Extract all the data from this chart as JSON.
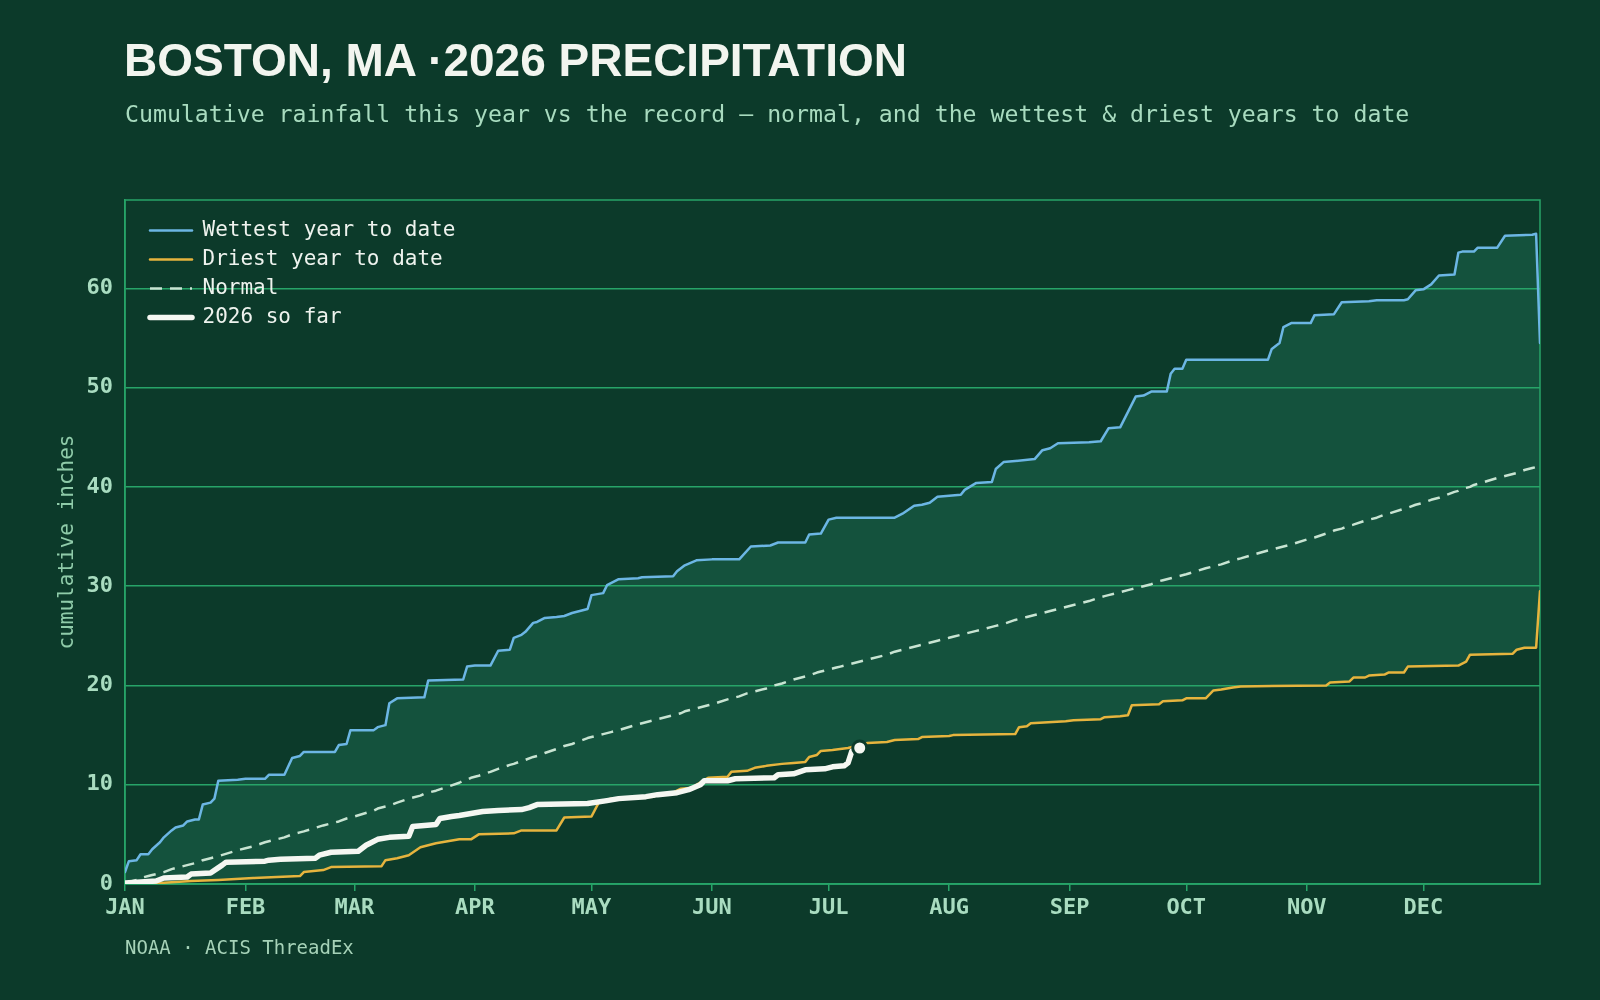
{
  "chart_data": {
    "type": "line",
    "title": "BOSTON, MA ·2026 PRECIPITATION",
    "subtitle": "Cumulative rainfall this year vs the record — normal, and the wettest & driest years to date",
    "ylabel": "cumulative inches",
    "xlim": [
      "--01-01",
      "--12-31"
    ],
    "xticks": [
      {
        "value": "--01-01",
        "label": "JAN"
      },
      {
        "value": "--02-01",
        "label": "FEB"
      },
      {
        "value": "--03-01",
        "label": "MAR"
      },
      {
        "value": "--04-01",
        "label": "APR"
      },
      {
        "value": "--05-01",
        "label": "MAY"
      },
      {
        "value": "--06-01",
        "label": "JUN"
      },
      {
        "value": "--07-01",
        "label": "JUL"
      },
      {
        "value": "--08-01",
        "label": "AUG"
      },
      {
        "value": "--09-01",
        "label": "SEP"
      },
      {
        "value": "--10-01",
        "label": "OCT"
      },
      {
        "value": "--11-01",
        "label": "NOV"
      },
      {
        "value": "--12-01",
        "label": "DEC"
      }
    ],
    "ylim": [
      0,
      68.9
    ],
    "yticks": [
      0,
      10,
      20,
      30,
      40,
      50,
      60
    ],
    "grid": "y",
    "legend": "top left",
    "annotations": [
      "NOAA · ACIS ThreadEx"
    ],
    "series": [
      {
        "name": "Wettest year to date",
        "color": "#6cb6e4",
        "x": [
          "--01-01",
          "--01-02",
          "--01-04",
          "--01-05",
          "--01-07",
          "--01-08",
          "--01-10",
          "--01-11",
          "--01-13",
          "--01-14",
          "--01-16",
          "--01-17",
          "--01-19",
          "--01-20",
          "--01-21",
          "--01-23",
          "--01-24",
          "--01-25",
          "--01-30",
          "--02-01",
          "--02-06",
          "--02-07",
          "--02-11",
          "--02-13",
          "--02-15",
          "--02-16",
          "--02-24",
          "--02-25",
          "--02-27",
          "--02-28",
          "--03-06",
          "--03-07",
          "--03-09",
          "--03-10",
          "--03-12",
          "--03-19",
          "--03-20",
          "--03-29",
          "--03-30",
          "--04-01",
          "--04-05",
          "--04-07",
          "--04-10",
          "--04-11",
          "--04-13",
          "--04-14",
          "--04-16",
          "--04-17",
          "--04-19",
          "--04-22",
          "--04-24",
          "--04-26",
          "--04-30",
          "--05-01",
          "--05-04",
          "--05-05",
          "--05-08",
          "--05-13",
          "--05-14",
          "--05-22",
          "--05-23",
          "--05-25",
          "--05-28",
          "--06-01",
          "--06-08",
          "--06-11",
          "--06-16",
          "--06-18",
          "--06-25",
          "--06-26",
          "--06-29",
          "--07-01",
          "--07-03",
          "--07-18",
          "--07-20",
          "--07-23",
          "--07-25",
          "--07-27",
          "--07-29",
          "--08-04",
          "--08-05",
          "--08-08",
          "--08-12",
          "--08-13",
          "--08-15",
          "--08-18",
          "--08-23",
          "--08-25",
          "--08-27",
          "--08-29",
          "--09-06",
          "--09-09",
          "--09-11",
          "--09-14",
          "--09-18",
          "--09-20",
          "--09-22",
          "--09-26",
          "--09-27",
          "--09-28",
          "--09-30",
          "--10-01",
          "--10-22",
          "--10-23",
          "--10-25",
          "--10-26",
          "--10-28",
          "--11-02",
          "--11-03",
          "--11-08",
          "--11-10",
          "--11-17",
          "--11-19",
          "--11-26",
          "--11-27",
          "--11-29",
          "--12-01",
          "--12-03",
          "--12-05",
          "--12-09",
          "--12-10",
          "--12-11",
          "--12-14",
          "--12-15",
          "--12-20",
          "--12-22",
          "--12-29",
          "--12-30",
          "--12-31"
        ],
        "values": [
          1.2,
          2.3,
          2.4,
          3.0,
          3.0,
          3.5,
          4.2,
          4.7,
          5.4,
          5.7,
          5.9,
          6.3,
          6.5,
          6.5,
          8.0,
          8.2,
          8.6,
          10.4,
          10.5,
          10.6,
          10.6,
          11.0,
          11.0,
          12.7,
          12.9,
          13.3,
          13.3,
          14.0,
          14.1,
          15.5,
          15.5,
          15.8,
          16.0,
          18.2,
          18.7,
          18.8,
          20.5,
          20.6,
          21.9,
          22.0,
          22.0,
          23.5,
          23.6,
          24.8,
          25.1,
          25.4,
          26.3,
          26.4,
          26.8,
          26.9,
          27.0,
          27.3,
          27.7,
          29.1,
          29.3,
          30.1,
          30.7,
          30.8,
          30.9,
          31.0,
          31.5,
          32.1,
          32.6,
          32.7,
          32.7,
          34.0,
          34.1,
          34.4,
          34.4,
          35.2,
          35.3,
          36.7,
          36.9,
          36.9,
          37.3,
          38.1,
          38.2,
          38.4,
          39.0,
          39.2,
          39.7,
          40.4,
          40.5,
          41.8,
          42.5,
          42.6,
          42.8,
          43.7,
          43.9,
          44.4,
          44.5,
          44.6,
          45.9,
          46.0,
          49.1,
          49.2,
          49.6,
          49.6,
          51.4,
          51.9,
          51.9,
          52.8,
          52.8,
          53.9,
          54.5,
          56.1,
          56.5,
          56.5,
          57.3,
          57.4,
          58.6,
          58.7,
          58.8,
          58.8,
          58.9,
          59.8,
          59.9,
          60.4,
          61.3,
          61.4,
          63.6,
          63.7,
          63.7,
          64.1,
          64.1,
          65.3,
          65.4,
          65.5,
          54.5
        ]
      },
      {
        "name": "Driest year to date",
        "color": "#e6b43e",
        "x": [
          "--01-01",
          "--01-10",
          "--01-18",
          "--01-25",
          "--02-03",
          "--02-15",
          "--02-16",
          "--02-21",
          "--02-23",
          "--03-08",
          "--03-09",
          "--03-12",
          "--03-15",
          "--03-18",
          "--03-20",
          "--03-22",
          "--03-28",
          "--03-31",
          "--04-02",
          "--04-11",
          "--04-13",
          "--04-22",
          "--04-24",
          "--05-01",
          "--05-03",
          "--05-06",
          "--05-17",
          "--05-18",
          "--05-22",
          "--05-24",
          "--05-27",
          "--05-28",
          "--05-31",
          "--06-05",
          "--06-06",
          "--06-10",
          "--06-12",
          "--06-15",
          "--06-19",
          "--06-22",
          "--06-25",
          "--06-26",
          "--06-28",
          "--06-29",
          "--07-02",
          "--07-04",
          "--07-06",
          "--07-11",
          "--07-16",
          "--07-18",
          "--07-24",
          "--07-25",
          "--08-01",
          "--08-02",
          "--08-18",
          "--08-19",
          "--08-21",
          "--08-22",
          "--08-31",
          "--09-02",
          "--09-09",
          "--09-10",
          "--09-14",
          "--09-16",
          "--09-17",
          "--09-24",
          "--09-25",
          "--09-30",
          "--10-01",
          "--10-06",
          "--10-08",
          "--10-10",
          "--10-13",
          "--10-15",
          "--11-06",
          "--11-07",
          "--11-12",
          "--11-13",
          "--11-16",
          "--11-17",
          "--11-21",
          "--11-22",
          "--11-26",
          "--11-27",
          "--12-10",
          "--12-12",
          "--12-13",
          "--12-24",
          "--12-25",
          "--12-27",
          "--12-30",
          "--12-31"
        ],
        "values": [
          0.0,
          0.1,
          0.3,
          0.4,
          0.6,
          0.8,
          1.2,
          1.4,
          1.7,
          1.8,
          2.4,
          2.6,
          2.9,
          3.7,
          3.9,
          4.1,
          4.5,
          4.5,
          5.0,
          5.1,
          5.4,
          5.4,
          6.7,
          6.8,
          8.3,
          8.6,
          8.8,
          9.1,
          9.2,
          9.6,
          9.7,
          10.0,
          10.7,
          10.8,
          11.3,
          11.4,
          11.7,
          11.9,
          12.1,
          12.2,
          12.3,
          12.8,
          13.0,
          13.4,
          13.5,
          13.6,
          13.7,
          14.2,
          14.3,
          14.5,
          14.6,
          14.8,
          14.9,
          15.0,
          15.1,
          15.8,
          15.9,
          16.2,
          16.4,
          16.5,
          16.6,
          16.8,
          16.9,
          17.0,
          18.0,
          18.1,
          18.4,
          18.5,
          18.7,
          18.7,
          19.5,
          19.6,
          19.8,
          19.9,
          20.0,
          20.3,
          20.4,
          20.8,
          20.8,
          21.0,
          21.1,
          21.3,
          21.3,
          21.9,
          22.0,
          22.4,
          23.1,
          23.2,
          23.6,
          23.8,
          23.8,
          29.5
        ]
      },
      {
        "name": "Normal",
        "color": "#c8e4d2",
        "line_style": "dashed",
        "x": [
          "--01-01",
          "--01-02",
          "--01-04",
          "--01-05",
          "--01-07",
          "--01-08",
          "--01-10",
          "--01-11",
          "--01-13",
          "--01-14",
          "--01-16",
          "--01-17",
          "--01-18",
          "--01-19",
          "--01-20",
          "--01-21",
          "--01-23",
          "--01-24",
          "--01-25",
          "--01-30",
          "--02-01",
          "--02-03",
          "--02-06",
          "--02-07",
          "--02-11",
          "--02-13",
          "--02-15",
          "--02-16",
          "--02-21",
          "--02-23",
          "--02-24",
          "--02-25",
          "--02-27",
          "--02-28",
          "--03-01",
          "--03-06",
          "--03-07",
          "--03-08",
          "--03-09",
          "--03-10",
          "--03-12",
          "--03-15",
          "--03-18",
          "--03-19",
          "--03-20",
          "--03-22",
          "--03-28",
          "--03-29",
          "--03-30",
          "--03-31",
          "--04-01",
          "--04-02",
          "--04-05",
          "--04-07",
          "--04-10",
          "--04-11",
          "--04-13",
          "--04-14",
          "--04-16",
          "--04-17",
          "--04-19",
          "--04-22",
          "--04-24",
          "--04-26",
          "--04-30",
          "--05-01",
          "--05-03",
          "--05-04",
          "--05-05",
          "--05-06",
          "--05-08",
          "--05-13",
          "--05-14",
          "--05-17",
          "--05-18",
          "--05-22",
          "--05-23",
          "--05-24",
          "--05-25",
          "--05-27",
          "--05-28",
          "--05-31",
          "--06-01",
          "--06-05",
          "--06-06",
          "--06-08",
          "--06-10",
          "--06-11",
          "--06-12",
          "--06-15",
          "--06-16",
          "--06-18",
          "--06-19",
          "--06-22",
          "--06-25",
          "--06-26",
          "--06-28",
          "--06-29",
          "--07-01",
          "--07-02",
          "--07-03",
          "--07-04",
          "--07-06",
          "--07-11",
          "--07-16",
          "--07-18",
          "--07-20",
          "--07-23",
          "--07-24",
          "--07-25",
          "--07-27",
          "--07-29",
          "--08-01",
          "--08-02",
          "--08-04",
          "--08-05",
          "--08-08",
          "--08-12",
          "--08-13",
          "--08-15",
          "--08-18",
          "--08-19",
          "--08-21",
          "--08-22",
          "--08-23",
          "--08-25",
          "--08-27",
          "--08-29",
          "--08-31",
          "--09-01",
          "--09-02",
          "--09-06",
          "--09-09",
          "--09-10",
          "--09-11",
          "--09-14",
          "--09-16",
          "--09-17",
          "--09-18",
          "--09-20",
          "--09-22",
          "--09-24",
          "--09-25",
          "--09-26",
          "--09-27",
          "--09-28",
          "--09-30",
          "--10-01",
          "--10-06",
          "--10-08",
          "--10-10",
          "--10-13",
          "--10-15",
          "--10-22",
          "--10-23",
          "--10-25",
          "--10-26",
          "--10-28",
          "--11-01",
          "--11-02",
          "--11-03",
          "--11-06",
          "--11-07",
          "--11-08",
          "--11-10",
          "--11-12",
          "--11-13",
          "--11-16",
          "--11-17",
          "--11-19",
          "--11-21",
          "--11-22",
          "--11-26",
          "--11-27",
          "--11-29",
          "--12-01",
          "--12-03",
          "--12-05",
          "--12-09",
          "--12-10",
          "--12-11",
          "--12-12",
          "--12-13",
          "--12-14",
          "--12-15",
          "--12-20",
          "--12-22",
          "--12-24",
          "--12-25",
          "--12-27",
          "--12-29",
          "--12-30",
          "--12-31"
        ],
        "values": [
          0.1,
          0.2,
          0.4,
          0.6,
          0.8,
          0.9,
          1.1,
          1.2,
          1.5,
          1.6,
          1.8,
          1.9,
          2.0,
          2.1,
          2.2,
          2.4,
          2.6,
          2.7,
          2.8,
          3.4,
          3.6,
          3.8,
          4.2,
          4.3,
          4.7,
          5.0,
          5.2,
          5.3,
          5.9,
          6.1,
          6.2,
          6.3,
          6.6,
          6.7,
          6.8,
          7.4,
          7.6,
          7.7,
          7.8,
          7.9,
          8.2,
          8.6,
          8.9,
          9.1,
          9.2,
          9.4,
          10.2,
          10.4,
          10.5,
          10.7,
          10.8,
          10.9,
          11.3,
          11.6,
          12.0,
          12.1,
          12.4,
          12.5,
          12.8,
          12.9,
          13.2,
          13.6,
          13.9,
          14.1,
          14.7,
          14.8,
          15.0,
          15.1,
          15.2,
          15.3,
          15.5,
          16.1,
          16.2,
          16.5,
          16.6,
          17.0,
          17.1,
          17.2,
          17.4,
          17.6,
          17.7,
          18.0,
          18.1,
          18.6,
          18.7,
          18.9,
          19.2,
          19.3,
          19.4,
          19.7,
          19.9,
          20.1,
          20.2,
          20.6,
          20.9,
          21.0,
          21.3,
          21.4,
          21.6,
          21.7,
          21.8,
          21.9,
          22.1,
          22.6,
          23.1,
          23.4,
          23.6,
          23.9,
          24.0,
          24.1,
          24.3,
          24.5,
          24.8,
          24.9,
          25.1,
          25.2,
          25.5,
          25.9,
          26.0,
          26.2,
          26.6,
          26.7,
          26.9,
          27.0,
          27.1,
          27.3,
          27.5,
          27.7,
          27.9,
          28.0,
          28.1,
          28.5,
          28.9,
          29.0,
          29.1,
          29.4,
          29.6,
          29.7,
          29.8,
          30.0,
          30.2,
          30.5,
          30.6,
          30.7,
          30.8,
          30.9,
          31.1,
          31.2,
          31.8,
          32.0,
          32.2,
          32.6,
          32.8,
          33.6,
          33.7,
          33.9,
          34.0,
          34.2,
          34.7,
          34.8,
          34.9,
          35.3,
          35.4,
          35.6,
          35.8,
          36.1,
          36.2,
          36.6,
          36.7,
          36.9,
          37.2,
          37.3,
          37.8,
          37.9,
          38.2,
          38.4,
          38.7,
          38.9,
          39.5,
          39.6,
          39.8,
          39.9,
          40.0,
          40.2,
          40.3,
          40.9,
          41.1,
          41.3,
          41.4,
          41.7,
          41.9,
          42.0,
          41.6
        ],
        "lower": [
          0.0,
          0.0,
          0.0,
          0.0,
          0.1,
          0.1,
          0.1,
          0.1,
          0.2,
          0.2,
          0.3,
          0.3,
          0.3,
          0.3,
          0.3,
          0.3,
          0.4,
          0.4,
          0.4,
          0.5,
          0.6,
          0.6,
          0.7,
          0.7,
          0.7,
          0.8,
          0.8,
          1.2,
          1.4,
          1.7,
          1.7,
          1.7,
          1.7,
          1.7,
          1.7,
          1.8,
          1.8,
          1.8,
          2.4,
          2.5,
          2.6,
          2.9,
          3.7,
          3.8,
          3.9,
          4.1,
          4.5,
          4.5,
          4.5,
          4.5,
          4.8,
          5.0,
          5.0,
          5.1,
          5.1,
          5.1,
          5.4,
          5.4,
          5.4,
          5.4,
          5.4,
          5.4,
          6.7,
          6.7,
          6.8,
          6.8,
          8.3,
          8.4,
          8.5,
          8.6,
          8.6,
          8.7,
          8.7,
          8.8,
          9.1,
          9.2,
          9.4,
          9.6,
          9.6,
          9.7,
          10.0,
          10.7,
          10.7,
          10.8,
          11.3,
          11.4,
          11.4,
          11.6,
          11.7,
          11.9,
          12.0,
          12.1,
          12.1,
          12.2,
          12.3,
          12.8,
          13.0,
          13.4,
          13.5,
          13.5,
          13.6,
          13.6,
          13.7,
          14.2,
          14.3,
          14.5,
          14.5,
          14.6,
          14.6,
          14.8,
          14.8,
          14.9,
          14.9,
          15.0,
          15.0,
          15.0,
          15.0,
          15.1,
          15.1,
          15.1,
          15.1,
          15.8,
          15.9,
          16.2,
          16.2,
          16.3,
          16.3,
          16.4,
          16.4,
          16.5,
          16.5,
          16.6,
          16.6,
          16.8,
          16.8,
          16.9,
          17.0,
          18.0,
          18.0,
          18.0,
          18.1,
          18.1,
          18.4,
          18.4,
          18.4,
          18.5,
          18.5,
          18.7,
          18.7,
          19.5,
          19.6,
          19.8,
          19.9,
          19.9,
          19.9,
          19.9,
          20.0,
          20.0,
          20.0,
          20.0,
          20.0,
          20.0,
          20.3,
          20.3,
          20.4,
          20.4,
          20.8,
          20.8,
          21.0,
          21.1,
          21.1,
          21.3,
          21.3,
          21.9,
          21.9,
          21.9,
          21.9,
          22.0,
          22.0,
          22.0,
          22.2,
          22.4,
          23.1,
          23.1,
          23.1,
          23.2,
          23.2,
          23.2,
          23.6,
          23.8,
          23.8,
          23.8,
          29.5
        ],
        "upper": [
          1.2,
          2.3,
          2.4,
          3.0,
          3.0,
          3.5,
          4.2,
          4.7,
          5.4,
          5.7,
          5.9,
          6.3,
          6.4,
          6.5,
          6.5,
          8.0,
          8.2,
          8.6,
          10.4,
          10.5,
          10.6,
          10.6,
          10.6,
          11.0,
          11.0,
          12.7,
          12.9,
          13.3,
          13.3,
          13.3,
          13.3,
          14.0,
          14.1,
          15.5,
          15.5,
          15.5,
          15.8,
          15.9,
          16.0,
          18.2,
          18.7,
          18.7,
          18.8,
          18.8,
          20.5,
          20.5,
          20.6,
          20.6,
          21.9,
          22.0,
          22.0,
          22.0,
          22.0,
          23.5,
          23.6,
          24.8,
          25.1,
          25.4,
          26.3,
          26.4,
          26.8,
          26.9,
          27.0,
          27.3,
          27.7,
          29.1,
          29.2,
          29.3,
          30.1,
          30.3,
          30.7,
          30.8,
          30.9,
          30.9,
          31.0,
          31.0,
          31.5,
          31.8,
          32.1,
          32.4,
          32.6,
          32.7,
          32.7,
          32.7,
          32.7,
          32.7,
          33.6,
          34.0,
          34.0,
          34.1,
          34.1,
          34.4,
          34.4,
          34.4,
          34.4,
          35.2,
          35.3,
          35.3,
          36.7,
          36.8,
          36.9,
          36.9,
          36.9,
          36.9,
          36.9,
          36.9,
          37.3,
          38.1,
          38.2,
          38.2,
          38.4,
          39.0,
          39.1,
          39.1,
          39.2,
          39.7,
          40.4,
          40.5,
          41.8,
          42.5,
          42.6,
          42.6,
          42.7,
          42.8,
          42.8,
          43.7,
          43.9,
          44.4,
          44.4,
          44.4,
          44.5,
          44.5,
          44.6,
          45.3,
          45.9,
          46.0,
          47.6,
          48.3,
          49.1,
          49.2,
          49.6,
          49.6,
          49.6,
          49.6,
          51.4,
          51.9,
          51.9,
          52.8,
          52.8,
          52.8,
          52.8,
          52.8,
          52.8,
          52.8,
          53.9,
          54.5,
          56.1,
          56.5,
          56.5,
          56.5,
          57.3,
          57.4,
          57.4,
          57.4,
          58.6,
          58.6,
          58.6,
          58.7,
          58.7,
          58.8,
          58.8,
          58.8,
          58.8,
          58.9,
          59.8,
          59.9,
          60.4,
          61.3,
          61.4,
          63.6,
          63.7,
          63.7,
          63.7,
          63.7,
          64.1,
          64.1,
          65.3,
          65.3,
          65.3,
          65.4,
          65.4,
          65.5,
          54.5
        ]
      },
      {
        "name": "2026 so far",
        "color": "#f5f7f2",
        "x": [
          "--01-01",
          "--01-09",
          "--01-11",
          "--01-17",
          "--01-18",
          "--01-23",
          "--01-26",
          "--01-27",
          "--02-06",
          "--02-07",
          "--02-10",
          "--02-19",
          "--02-20",
          "--02-23",
          "--03-02",
          "--03-04",
          "--03-07",
          "--03-10",
          "--03-15",
          "--03-16",
          "--03-22",
          "--03-23",
          "--03-26",
          "--03-28",
          "--03-31",
          "--04-03",
          "--04-07",
          "--04-13",
          "--04-15",
          "--04-17",
          "--04-30",
          "--05-05",
          "--05-08",
          "--05-15",
          "--05-18",
          "--05-23",
          "--05-26",
          "--05-29",
          "--05-30",
          "--06-05",
          "--06-07",
          "--06-17",
          "--06-18",
          "--06-22",
          "--06-25",
          "--06-30",
          "--07-02",
          "--07-05",
          "--07-06",
          "--07-07",
          "--07-09"
        ],
        "values": [
          0.1,
          0.3,
          0.6,
          0.7,
          1.0,
          1.1,
          1.9,
          2.2,
          2.3,
          2.4,
          2.5,
          2.6,
          2.9,
          3.2,
          3.3,
          3.9,
          4.5,
          4.7,
          4.8,
          5.8,
          6.0,
          6.6,
          6.8,
          6.9,
          7.1,
          7.3,
          7.4,
          7.5,
          7.7,
          8.0,
          8.1,
          8.4,
          8.6,
          8.8,
          9.0,
          9.2,
          9.5,
          10.0,
          10.4,
          10.4,
          10.6,
          10.7,
          11.0,
          11.1,
          11.5,
          11.6,
          11.8,
          11.9,
          12.2,
          13.4,
          13.7
        ]
      },
      {
        "type": "scatter",
        "color": "#f5f7f2",
        "marker": "circle",
        "x": [
          "--07-09"
        ],
        "values": [
          13.7
        ]
      }
    ]
  }
}
